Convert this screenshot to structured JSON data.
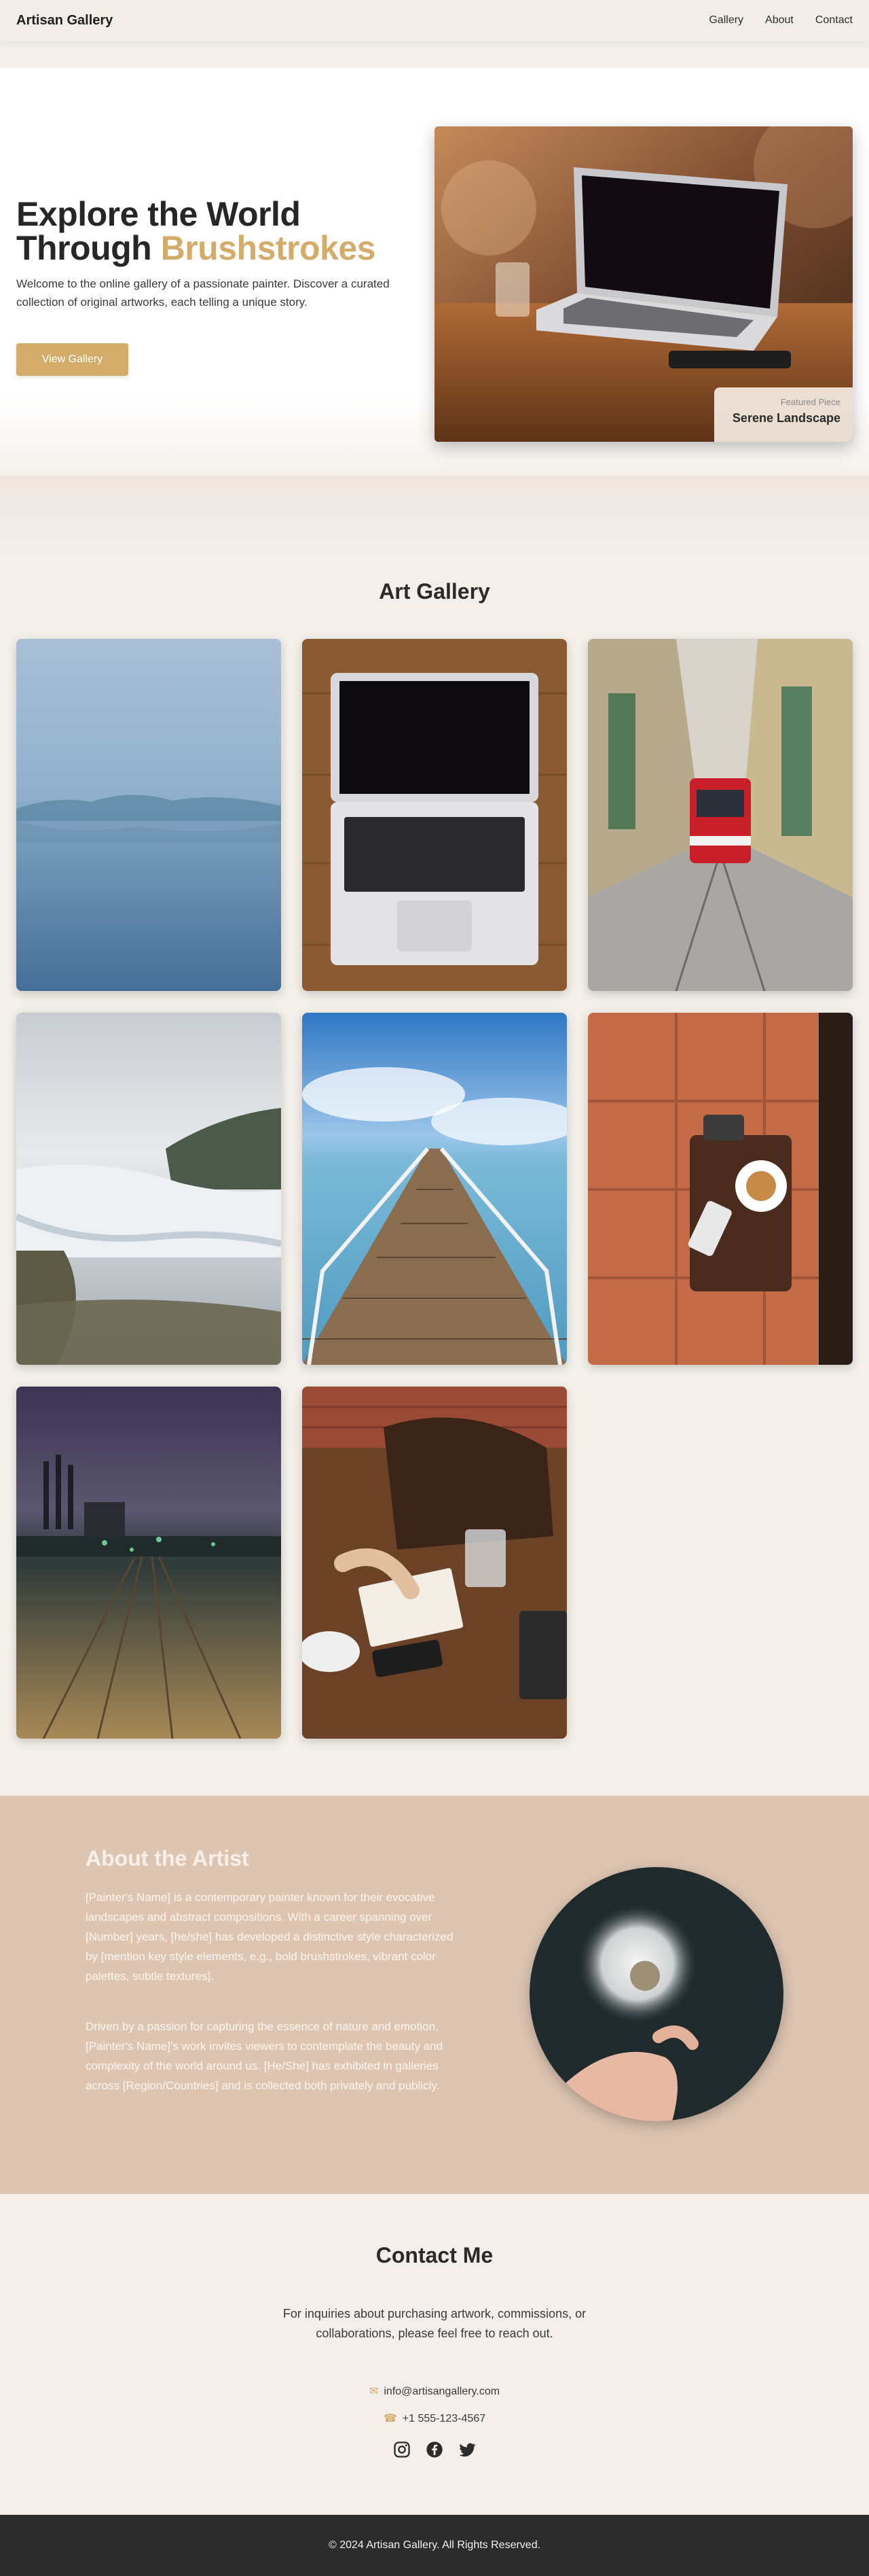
{
  "header": {
    "brand": "Artisan Gallery",
    "nav": [
      "Gallery",
      "About",
      "Contact"
    ]
  },
  "hero": {
    "title_line1": "Explore the World",
    "title_line2_plain": "Through ",
    "title_line2_accent": "Brushstrokes",
    "description": "Welcome to the online gallery of a passionate painter. Discover a curated collection of original artworks, each telling a unique story.",
    "button_label": "View Gallery",
    "featured_kicker": "Featured Piece",
    "featured_name": "Serene Landscape"
  },
  "gallery": {
    "title": "Art Gallery"
  },
  "about": {
    "title": "About the Artist",
    "paragraph1": "[Painter's Name] is a contemporary painter known for their evocative landscapes and abstract compositions. With a career spanning over [Number] years, [he/she] has developed a distinctive style characterized by [mention key style elements, e.g., bold brushstrokes, vibrant color palettes, subtle textures].",
    "paragraph2": "Driven by a passion for capturing the essence of nature and emotion, [Painter's Name]'s work invites viewers to contemplate the beauty and complexity of the world around us. [He/She] has exhibited in galleries across [Region/Countries] and is collected both privately and publicly."
  },
  "contact": {
    "title": "Contact Me",
    "description": "For inquiries about purchasing artwork, commissions, or collaborations, please feel free to reach out.",
    "email": "info@artisangallery.com",
    "phone": "+1 555-123-4567",
    "icons": [
      "instagram-icon",
      "facebook-icon",
      "twitter-icon"
    ]
  },
  "footer": {
    "copyright": "© 2024 Artisan Gallery. All Rights Reserved."
  },
  "colors": {
    "accent": "#d4ac6a",
    "background": "#f4efea",
    "about_bg": "#dec5b2",
    "footer_bg": "#2c2c2c"
  }
}
